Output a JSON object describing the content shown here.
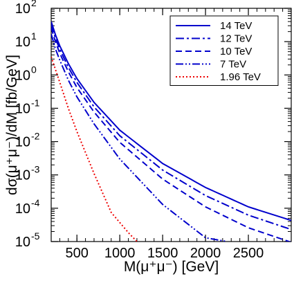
{
  "chart_data": {
    "type": "line",
    "xlabel": "M(μ⁺μ⁻)  [GeV]",
    "ylabel": "dσ(μ⁺μ⁻)/dM  [fb/GeV]",
    "xlim": [
      200,
      3000
    ],
    "ylim": [
      1e-05,
      100
    ],
    "yscale": "log",
    "x_ticks": [
      500,
      1000,
      1500,
      2000,
      2500
    ],
    "x_tick_labels": [
      "500",
      "1000",
      "1500",
      "2000",
      "2500"
    ],
    "y_ticks": [
      1e-05,
      0.0001,
      0.001,
      0.01,
      0.1,
      1,
      10,
      100
    ],
    "y_tick_labels": [
      {
        "base": "10",
        "exp": "-5"
      },
      {
        "base": "10",
        "exp": "-4"
      },
      {
        "base": "10",
        "exp": "-3"
      },
      {
        "base": "10",
        "exp": "-2"
      },
      {
        "base": "10",
        "exp": "-1"
      },
      {
        "base": "10",
        "exp": "0"
      },
      {
        "base": "10",
        "exp": "1"
      },
      {
        "base": "10",
        "exp": "2"
      }
    ],
    "grid": false,
    "legend_position": "top-right",
    "series": [
      {
        "name": "14 TeV",
        "color": "#0000cc",
        "dash": "solid",
        "x": [
          200,
          250,
          300,
          400,
          500,
          700,
          1000,
          1500,
          2000,
          2500,
          3000
        ],
        "y": [
          40,
          16,
          7.5,
          2.2,
          0.78,
          0.15,
          0.022,
          0.0022,
          0.00042,
          0.00011,
          4.3e-05
        ]
      },
      {
        "name": "12 TeV",
        "color": "#0000cc",
        "dash": "dashdot",
        "x": [
          200,
          250,
          300,
          400,
          500,
          700,
          1000,
          1500,
          2000,
          2500,
          3000
        ],
        "y": [
          33,
          12.5,
          5.9,
          1.7,
          0.6,
          0.11,
          0.015,
          0.0014,
          0.00024,
          6.2e-05,
          2.3e-05
        ]
      },
      {
        "name": "10 TeV",
        "color": "#0000cc",
        "dash": "dashed",
        "x": [
          200,
          250,
          300,
          400,
          500,
          700,
          1000,
          1500,
          2000,
          2500,
          3000
        ],
        "y": [
          26,
          9.8,
          4.5,
          1.25,
          0.42,
          0.077,
          0.0095,
          0.00075,
          0.00011,
          2.6e-05,
          9.5e-06
        ]
      },
      {
        "name": "7 TeV",
        "color": "#0000cc",
        "dash": "dashdotdot",
        "x": [
          200,
          250,
          300,
          400,
          500,
          700,
          1000,
          1500,
          2000,
          2250
        ],
        "y": [
          17,
          6,
          2.8,
          0.7,
          0.22,
          0.034,
          0.003,
          0.00013,
          1.3e-05,
          1e-05
        ]
      },
      {
        "name": "1.96 TeV",
        "color": "#ee0000",
        "dash": "dotted",
        "x": [
          200,
          300,
          400,
          500,
          700,
          900,
          1100,
          1200
        ],
        "y": [
          3.5,
          0.6,
          0.1,
          0.02,
          0.0011,
          7.5e-05,
          1.85e-05,
          1e-05
        ]
      }
    ]
  }
}
